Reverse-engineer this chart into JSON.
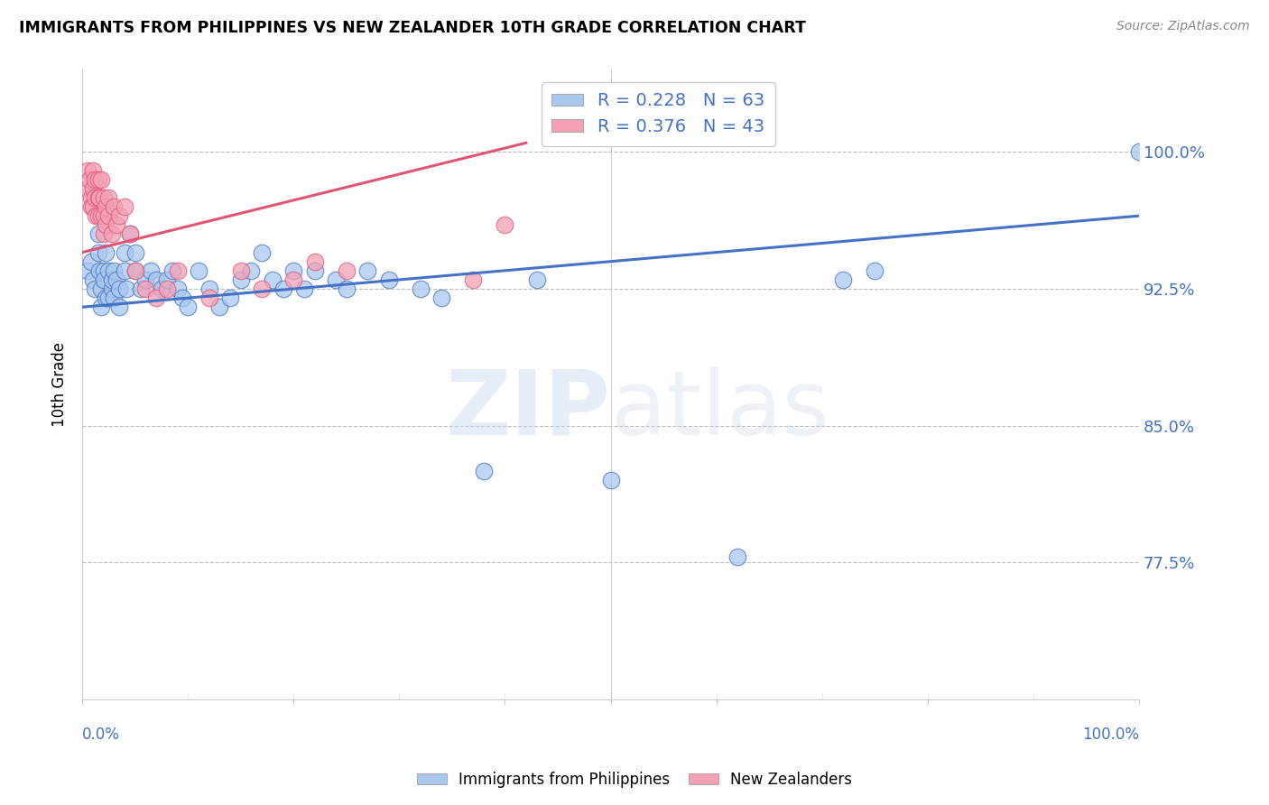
{
  "title": "IMMIGRANTS FROM PHILIPPINES VS NEW ZEALANDER 10TH GRADE CORRELATION CHART",
  "source": "Source: ZipAtlas.com",
  "ylabel": "10th Grade",
  "ytick_labels": [
    "100.0%",
    "92.5%",
    "85.0%",
    "77.5%"
  ],
  "ytick_values": [
    1.0,
    0.925,
    0.85,
    0.775
  ],
  "xlim": [
    0.0,
    1.0
  ],
  "ylim": [
    0.7,
    1.045
  ],
  "blue_R": 0.228,
  "blue_N": 63,
  "pink_R": 0.376,
  "pink_N": 43,
  "blue_color": "#A8C8F0",
  "pink_color": "#F4A0B5",
  "blue_line_color": "#4472C4",
  "pink_line_color": "#E05575",
  "background_color": "#FFFFFF",
  "blue_line_x0": 0.0,
  "blue_line_y0": 0.915,
  "blue_line_x1": 1.0,
  "blue_line_y1": 0.965,
  "pink_line_x0": 0.0,
  "pink_line_y0": 0.945,
  "pink_line_x1": 0.42,
  "pink_line_y1": 1.005,
  "blue_scatter_x": [
    0.005,
    0.008,
    0.01,
    0.012,
    0.015,
    0.015,
    0.016,
    0.018,
    0.018,
    0.02,
    0.02,
    0.022,
    0.022,
    0.025,
    0.025,
    0.028,
    0.028,
    0.03,
    0.03,
    0.032,
    0.035,
    0.035,
    0.04,
    0.04,
    0.042,
    0.045,
    0.05,
    0.05,
    0.055,
    0.06,
    0.065,
    0.07,
    0.075,
    0.08,
    0.085,
    0.09,
    0.095,
    0.1,
    0.11,
    0.12,
    0.13,
    0.14,
    0.15,
    0.16,
    0.17,
    0.18,
    0.19,
    0.2,
    0.21,
    0.22,
    0.24,
    0.25,
    0.27,
    0.29,
    0.32,
    0.34,
    0.38,
    0.43,
    0.5,
    0.62,
    0.72,
    0.75,
    1.0
  ],
  "blue_scatter_y": [
    0.935,
    0.94,
    0.93,
    0.925,
    0.945,
    0.955,
    0.935,
    0.925,
    0.915,
    0.935,
    0.93,
    0.945,
    0.92,
    0.935,
    0.92,
    0.925,
    0.93,
    0.935,
    0.92,
    0.93,
    0.915,
    0.925,
    0.945,
    0.935,
    0.925,
    0.955,
    0.935,
    0.945,
    0.925,
    0.93,
    0.935,
    0.93,
    0.925,
    0.93,
    0.935,
    0.925,
    0.92,
    0.915,
    0.935,
    0.925,
    0.915,
    0.92,
    0.93,
    0.935,
    0.945,
    0.93,
    0.925,
    0.935,
    0.925,
    0.935,
    0.93,
    0.925,
    0.935,
    0.93,
    0.925,
    0.92,
    0.825,
    0.93,
    0.82,
    0.778,
    0.93,
    0.935,
    1.0
  ],
  "pink_scatter_x": [
    0.005,
    0.005,
    0.007,
    0.008,
    0.008,
    0.01,
    0.01,
    0.01,
    0.012,
    0.012,
    0.013,
    0.015,
    0.015,
    0.015,
    0.016,
    0.018,
    0.018,
    0.02,
    0.02,
    0.02,
    0.022,
    0.022,
    0.025,
    0.025,
    0.028,
    0.03,
    0.032,
    0.035,
    0.04,
    0.045,
    0.05,
    0.06,
    0.07,
    0.08,
    0.09,
    0.12,
    0.15,
    0.17,
    0.2,
    0.22,
    0.25,
    0.37,
    0.4
  ],
  "pink_scatter_y": [
    0.99,
    0.98,
    0.985,
    0.975,
    0.97,
    0.99,
    0.98,
    0.97,
    0.985,
    0.975,
    0.965,
    0.985,
    0.975,
    0.965,
    0.975,
    0.985,
    0.965,
    0.975,
    0.965,
    0.955,
    0.97,
    0.96,
    0.975,
    0.965,
    0.955,
    0.97,
    0.96,
    0.965,
    0.97,
    0.955,
    0.935,
    0.925,
    0.92,
    0.925,
    0.935,
    0.92,
    0.935,
    0.925,
    0.93,
    0.94,
    0.935,
    0.93,
    0.96
  ]
}
